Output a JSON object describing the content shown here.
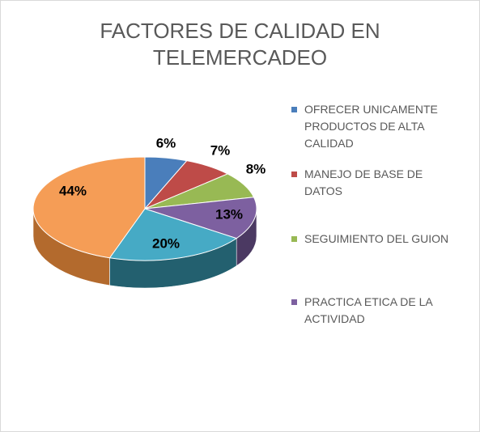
{
  "chart_data": {
    "type": "pie",
    "title_lines": [
      "FACTORES DE CALIDAD EN",
      "TELEMERCADEO"
    ],
    "categories": [
      "OFRECER UNICAMENTE PRODUCTOS DE ALTA CALIDAD",
      "MANEJO DE BASE DE DATOS",
      "SEGUIMIENTO DEL GUION",
      "PRACTICA ETICA DE LA ACTIVIDAD",
      "",
      ""
    ],
    "values": [
      6,
      7,
      8,
      13,
      20,
      44
    ],
    "data_labels": [
      "6%",
      "7%",
      "8%",
      "13%",
      "20%",
      "44%"
    ],
    "colors": [
      "#4a7ebb",
      "#be4b48",
      "#98b954",
      "#7d60a0",
      "#46aac5",
      "#f59d56"
    ],
    "side_colors": [
      "#2c4a73",
      "#742c2a",
      "#5b7032",
      "#4b3962",
      "#23606f",
      "#b36a2d"
    ],
    "legend_placement": "right",
    "style": "3d"
  },
  "legend": {
    "items": [
      {
        "lines": [
          "OFRECER UNICAMENTE",
          "PRODUCTOS DE ALTA",
          "CALIDAD"
        ],
        "color": "#4a7ebb"
      },
      {
        "lines": [
          "MANEJO DE BASE DE",
          "DATOS"
        ],
        "color": "#be4b48"
      },
      {
        "lines": [
          "SEGUIMIENTO DEL GUION"
        ],
        "color": "#98b954"
      },
      {
        "lines": [
          "PRACTICA ETICA DE LA",
          "ACTIVIDAD"
        ],
        "color": "#7d60a0"
      }
    ]
  }
}
